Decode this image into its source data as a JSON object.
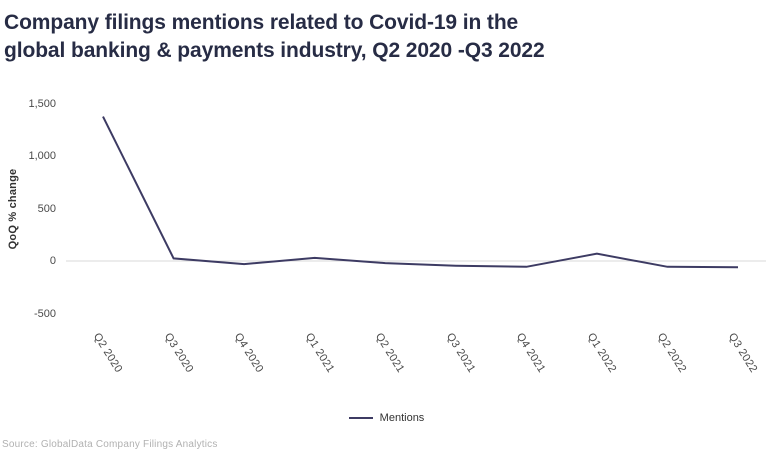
{
  "title": {
    "line1": "Company filings mentions related to Covid-19 in the",
    "line2": "global banking & payments industry, Q2 2020 -Q3 2022"
  },
  "source": "Source: GlobalData Company Filings Analytics",
  "legend": {
    "label": "Mentions"
  },
  "colors": {
    "title_text": "#272c45",
    "line": "#3d3b63",
    "axis_text": "#4a4a4a",
    "zero_line": "#d9d9d9",
    "source_text": "#b1b1b1"
  },
  "chart_data": {
    "type": "line",
    "title": "Company filings mentions related to Covid-19 in the global banking & payments industry, Q2 2020 -Q3 2022",
    "categories": [
      "Q2 2020",
      "Q3 2020",
      "Q4 2020",
      "Q1 2021",
      "Q2 2021",
      "Q3 2021",
      "Q4 2021",
      "Q1 2022",
      "Q2 2022",
      "Q3 2022"
    ],
    "series": [
      {
        "name": "Mentions",
        "values": [
          1375,
          25,
          -30,
          30,
          -20,
          -45,
          -55,
          70,
          -55,
          -60
        ]
      }
    ],
    "xlabel": "",
    "ylabel": "QoQ % change",
    "y_ticks": {
      "values": [
        1500,
        1000,
        500,
        0,
        -500
      ],
      "labels": [
        "1,500",
        "1,000",
        "500",
        "0",
        "-500"
      ]
    },
    "ylim": [
      -500,
      1500
    ],
    "grid": "zero-baseline-only",
    "legend_position": "bottom-center"
  }
}
